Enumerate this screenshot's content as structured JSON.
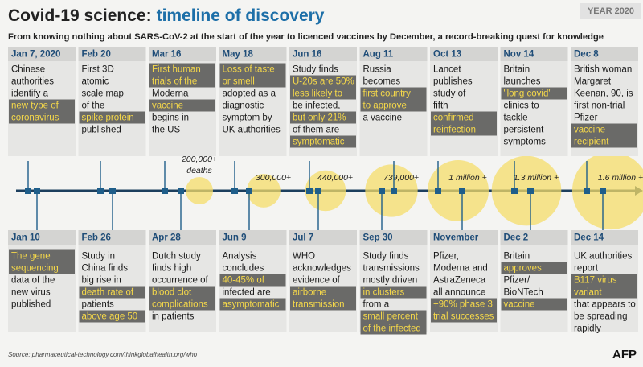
{
  "header": {
    "title": "Covid-19 science:",
    "title_accent": "timeline of discovery",
    "tag": "YEAR 2020",
    "subtitle": "From knowing nothing about SARS-CoV-2 at the start of the year to licenced vaccines by December, a record-breaking quest for knowledge"
  },
  "top_events": [
    {
      "date": "Jan 7, 2020",
      "lines": [
        "Chinese",
        "authorities",
        "identify a",
        {
          "text": "new type of",
          "highlight": true
        },
        {
          "text": "coronavirus",
          "highlight": true
        }
      ]
    },
    {
      "date": "Feb 20",
      "lines": [
        "First 3D",
        "atomic",
        "scale map",
        "of the",
        {
          "text": "spike protein",
          "highlight": true
        },
        "published"
      ]
    },
    {
      "date": "Mar 16",
      "lines": [
        {
          "text": "First human",
          "highlight": true
        },
        {
          "text": "trials of the",
          "highlight": true
        },
        "Moderna",
        {
          "text": "vaccine",
          "highlight": true
        },
        "begins in",
        "the US"
      ]
    },
    {
      "date": "May 18",
      "lines": [
        {
          "text": "Loss of taste",
          "highlight": true
        },
        {
          "text": "or smell",
          "highlight": true
        },
        "adopted as a",
        "diagnostic",
        "symptom by",
        "UK authorities"
      ]
    },
    {
      "date": "Jun 16",
      "lines": [
        "Study finds",
        {
          "text": "U-20s are 50%",
          "highlight": true
        },
        {
          "text": "less likely to",
          "highlight": true
        },
        "be infected,",
        {
          "text": "but only 21%",
          "highlight": true
        },
        "of them are",
        {
          "text": "symptomatic",
          "highlight": true
        }
      ]
    },
    {
      "date": "Aug 11",
      "lines": [
        "Russia",
        "becomes",
        {
          "text": "first country",
          "highlight": true
        },
        {
          "text": "to approve",
          "highlight": true
        },
        "a vaccine"
      ]
    },
    {
      "date": "Oct 13",
      "lines": [
        "Lancet",
        "publishes",
        "study of",
        "fifth",
        {
          "text": "confirmed",
          "highlight": true
        },
        {
          "text": "reinfection",
          "highlight": true
        }
      ]
    },
    {
      "date": "Nov 14",
      "lines": [
        "Britain",
        "launches",
        {
          "text": "\"long covid\"",
          "highlight": true
        },
        "clinics to",
        "tackle",
        "persistent",
        "symptoms"
      ]
    },
    {
      "date": "Dec 8",
      "lines": [
        "British woman",
        "Margaret",
        "Keenan, 90, is",
        "first non-trial",
        "Pfizer",
        {
          "text": "vaccine",
          "highlight": true
        },
        {
          "text": "recipient",
          "highlight": true
        }
      ]
    }
  ],
  "bottom_events": [
    {
      "date": "Jan 10",
      "lines": [
        {
          "text": "The gene",
          "highlight": true
        },
        {
          "text": "sequencing",
          "highlight": true
        },
        "data of the",
        "new virus",
        "published"
      ]
    },
    {
      "date": "Feb 26",
      "lines": [
        "Study in",
        "China finds",
        "big rise in",
        {
          "text": "death rate of",
          "highlight": true
        },
        "patients",
        {
          "text": "above age 50",
          "highlight": true
        }
      ]
    },
    {
      "date": "Apr 28",
      "lines": [
        "Dutch study",
        "finds high",
        "occurrence of",
        {
          "text": "blood clot",
          "highlight": true
        },
        {
          "text": "complications",
          "highlight": true
        },
        "in patients"
      ]
    },
    {
      "date": "Jun 9",
      "lines": [
        "Analysis",
        "concludes",
        {
          "text": "40-45% of",
          "highlight": true
        },
        "infected are",
        {
          "text": "asymptomatic",
          "highlight": true
        }
      ]
    },
    {
      "date": "Jul 7",
      "lines": [
        "WHO",
        "acknowledges",
        "evidence of",
        {
          "text": "airborne",
          "highlight": true
        },
        {
          "text": "transmission",
          "highlight": true
        }
      ]
    },
    {
      "date": "Sep 30",
      "lines": [
        "Study finds",
        "transmissions",
        "mostly driven",
        {
          "text": "in clusters",
          "highlight": true
        },
        "from a",
        {
          "text": "small percent",
          "highlight": true
        },
        {
          "text": "of the infected",
          "highlight": true
        }
      ]
    },
    {
      "date": "November",
      "lines": [
        "Pfizer,",
        "Moderna and",
        "AstraZeneca",
        "all announce",
        {
          "text": "+90% phase 3",
          "highlight": true
        },
        {
          "text": "trial successes",
          "highlight": true
        }
      ]
    },
    {
      "date": "Dec 2",
      "lines": [
        "Britain",
        {
          "text": "approves",
          "highlight": true
        },
        "Pfizer/",
        "BioNTech",
        {
          "text": "vaccine",
          "highlight": true
        }
      ]
    },
    {
      "date": "Dec 14",
      "lines": [
        "UK authorities",
        "report",
        {
          "text": "B117 virus",
          "highlight": true
        },
        {
          "text": "variant",
          "highlight": true
        },
        "that appears to",
        "be spreading",
        "rapidly"
      ]
    }
  ],
  "deaths": [
    {
      "label": [
        "200,000+",
        "deaths"
      ],
      "value": 200000
    },
    {
      "label": [
        "300,000+"
      ],
      "value": 300000
    },
    {
      "label": [
        "440,000+"
      ],
      "value": 440000
    },
    {
      "label": [
        "739,000+"
      ],
      "value": 739000
    },
    {
      "label": [
        "1 million +"
      ],
      "value": 1000000
    },
    {
      "label": [
        "1.3 million +"
      ],
      "value": 1300000
    },
    {
      "label": [
        "1.6 million +"
      ],
      "value": 1600000
    }
  ],
  "footer": {
    "source": "Source: pharmaceutical-technology.com/thinkglobalhealth.org/who",
    "logo": "AFP"
  }
}
